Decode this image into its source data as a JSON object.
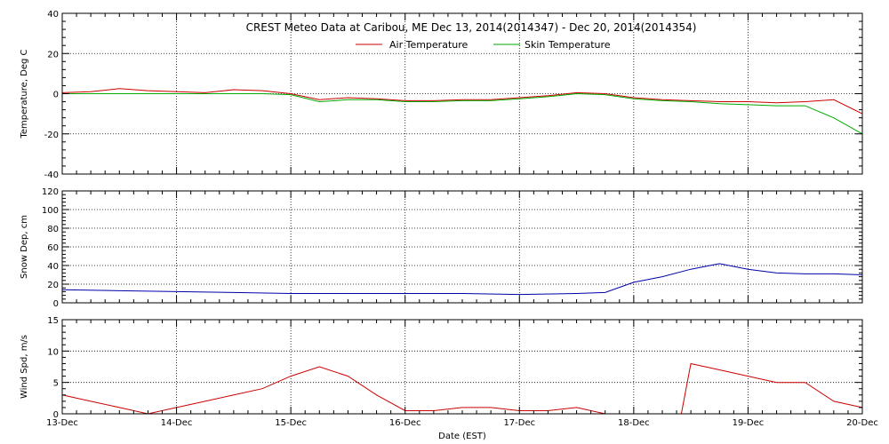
{
  "chart_data": {
    "type": "line",
    "title": "CREST Meteo Data at Caribou, ME   Dec 13, 2014(2014347) - Dec 20, 2014(2014354)",
    "xlabel": "Date (EST)",
    "x_range": [
      "2014-12-13",
      "2014-12-20"
    ],
    "x_ticks": [
      "13-Dec",
      "14-Dec",
      "15-Dec",
      "16-Dec",
      "17-Dec",
      "18-Dec",
      "19-Dec",
      "20-Dec"
    ],
    "grid": true,
    "panels": [
      {
        "ylabel": "Temperature, Deg C",
        "ylim": [
          -40,
          40
        ],
        "yticks": [
          "-40",
          "-20",
          "0",
          "20",
          "40"
        ],
        "legend": "top-center",
        "series": [
          {
            "name": "Air Temperature",
            "color": "#cc0000",
            "x": [
              "2014-12-13 00:00",
              "2014-12-13 06:00",
              "2014-12-13 12:00",
              "2014-12-13 18:00",
              "2014-12-14 00:00",
              "2014-12-14 06:00",
              "2014-12-14 12:00",
              "2014-12-14 18:00",
              "2014-12-15 00:00",
              "2014-12-15 06:00",
              "2014-12-15 12:00",
              "2014-12-15 18:00",
              "2014-12-16 00:00",
              "2014-12-16 06:00",
              "2014-12-16 12:00",
              "2014-12-16 18:00",
              "2014-12-17 00:00",
              "2014-12-17 06:00",
              "2014-12-17 12:00",
              "2014-12-17 18:00",
              "2014-12-18 00:00",
              "2014-12-18 06:00",
              "2014-12-18 12:00",
              "2014-12-18 18:00",
              "2014-12-19 00:00",
              "2014-12-19 06:00",
              "2014-12-19 12:00",
              "2014-12-19 18:00",
              "2014-12-20 00:00"
            ],
            "y": [
              0.5,
              1,
              2.5,
              1.5,
              1,
              0.5,
              2,
              1.5,
              0,
              -3,
              -2,
              -2.5,
              -3.5,
              -3.5,
              -3,
              -3,
              -2,
              -1,
              0.5,
              0,
              -2,
              -3,
              -3.5,
              -4,
              -4,
              -4.5,
              -4,
              -3,
              -10
            ]
          },
          {
            "name": "Skin Temperature",
            "color": "#00aa00",
            "x": [
              "2014-12-13 00:00",
              "2014-12-13 06:00",
              "2014-12-13 12:00",
              "2014-12-13 18:00",
              "2014-12-14 00:00",
              "2014-12-14 06:00",
              "2014-12-14 12:00",
              "2014-12-14 18:00",
              "2014-12-15 00:00",
              "2014-12-15 06:00",
              "2014-12-15 12:00",
              "2014-12-15 18:00",
              "2014-12-16 00:00",
              "2014-12-16 06:00",
              "2014-12-16 12:00",
              "2014-12-16 18:00",
              "2014-12-17 00:00",
              "2014-12-17 06:00",
              "2014-12-17 12:00",
              "2014-12-17 18:00",
              "2014-12-18 00:00",
              "2014-12-18 06:00",
              "2014-12-18 12:00",
              "2014-12-18 18:00",
              "2014-12-19 00:00",
              "2014-12-19 06:00",
              "2014-12-19 12:00",
              "2014-12-19 18:00",
              "2014-12-20 00:00"
            ],
            "y": [
              0,
              0,
              0,
              0,
              0,
              0,
              0,
              0,
              -0.5,
              -4,
              -3,
              -3,
              -4,
              -4,
              -3.5,
              -3.5,
              -2.5,
              -1.5,
              0,
              -0.5,
              -2.5,
              -3.5,
              -4,
              -5,
              -5.5,
              -6,
              -6,
              -12,
              -20
            ]
          }
        ]
      },
      {
        "ylabel": "Snow Dep, cm",
        "ylim": [
          0,
          120
        ],
        "yticks": [
          "0",
          "20",
          "40",
          "60",
          "80",
          "100",
          "120"
        ],
        "series": [
          {
            "color": "#0000aa",
            "x": [
              "2014-12-13 00:00",
              "2014-12-13 12:00",
              "2014-12-14 00:00",
              "2014-12-14 12:00",
              "2014-12-15 00:00",
              "2014-12-15 12:00",
              "2014-12-16 00:00",
              "2014-12-16 12:00",
              "2014-12-17 00:00",
              "2014-12-17 12:00",
              "2014-12-17 18:00",
              "2014-12-18 00:00",
              "2014-12-18 06:00",
              "2014-12-18 12:00",
              "2014-12-18 18:00",
              "2014-12-19 00:00",
              "2014-12-19 06:00",
              "2014-12-19 12:00",
              "2014-12-19 18:00",
              "2014-12-20 00:00"
            ],
            "y": [
              14,
              13,
              12,
              11,
              10,
              10,
              10,
              10,
              9,
              10,
              11,
              22,
              28,
              36,
              42,
              36,
              32,
              31,
              31,
              30
            ]
          }
        ]
      },
      {
        "ylabel": "Wind Spd, m/s",
        "ylim": [
          0,
          15
        ],
        "yticks": [
          "0",
          "5",
          "10",
          "15"
        ],
        "series": [
          {
            "color": "#cc0000",
            "x": [
              "2014-12-13 00:00",
              "2014-12-13 06:00",
              "2014-12-13 12:00",
              "2014-12-13 18:00",
              "2014-12-14 00:00",
              "2014-12-14 06:00",
              "2014-12-14 12:00",
              "2014-12-14 18:00",
              "2014-12-15 00:00",
              "2014-12-15 06:00",
              "2014-12-15 12:00",
              "2014-12-15 18:00",
              "2014-12-16 00:00",
              "2014-12-16 06:00",
              "2014-12-16 12:00",
              "2014-12-16 18:00",
              "2014-12-17 00:00",
              "2014-12-17 06:00",
              "2014-12-17 12:00",
              "2014-12-17 18:00",
              "2014-12-18 00:00",
              "2014-12-18 06:00",
              "2014-12-18 10:00",
              "2014-12-18 12:00",
              "2014-12-18 18:00",
              "2014-12-19 00:00",
              "2014-12-19 06:00",
              "2014-12-19 12:00",
              "2014-12-19 18:00",
              "2014-12-20 00:00"
            ],
            "y": [
              3,
              2,
              1,
              0,
              1,
              2,
              3,
              4,
              6,
              7.5,
              6,
              3,
              0.5,
              0.5,
              1,
              1,
              0.5,
              0.5,
              1,
              0,
              0,
              0,
              0,
              8,
              7,
              6,
              5,
              5,
              2,
              1
            ]
          }
        ]
      }
    ]
  }
}
